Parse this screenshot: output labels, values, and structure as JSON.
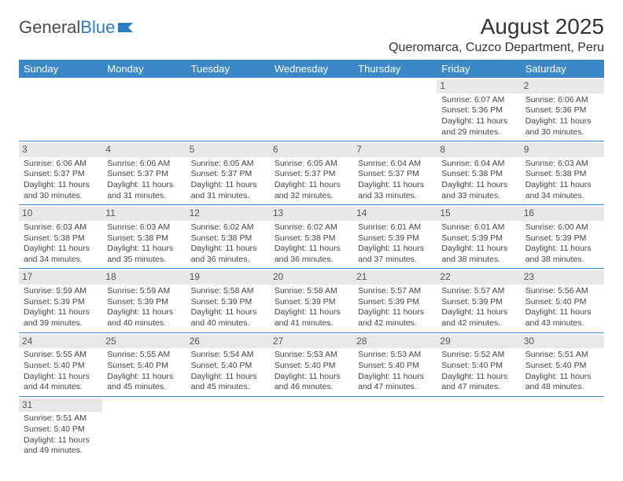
{
  "logo": {
    "text_a": "General",
    "text_b": "Blue",
    "color_a": "#4a4a4a",
    "color_b": "#2b7bbf"
  },
  "title": "August 2025",
  "location": "Queromarca, Cuzco Department, Peru",
  "header_bg": "#3b87c8",
  "daynum_bg": "#e8e8e8",
  "days_of_week": [
    "Sunday",
    "Monday",
    "Tuesday",
    "Wednesday",
    "Thursday",
    "Friday",
    "Saturday"
  ],
  "weeks": [
    [
      null,
      null,
      null,
      null,
      null,
      {
        "n": "1",
        "sunrise": "Sunrise: 6:07 AM",
        "sunset": "Sunset: 5:36 PM",
        "daylight": "Daylight: 11 hours and 29 minutes."
      },
      {
        "n": "2",
        "sunrise": "Sunrise: 6:06 AM",
        "sunset": "Sunset: 5:36 PM",
        "daylight": "Daylight: 11 hours and 30 minutes."
      }
    ],
    [
      {
        "n": "3",
        "sunrise": "Sunrise: 6:06 AM",
        "sunset": "Sunset: 5:37 PM",
        "daylight": "Daylight: 11 hours and 30 minutes."
      },
      {
        "n": "4",
        "sunrise": "Sunrise: 6:06 AM",
        "sunset": "Sunset: 5:37 PM",
        "daylight": "Daylight: 11 hours and 31 minutes."
      },
      {
        "n": "5",
        "sunrise": "Sunrise: 6:05 AM",
        "sunset": "Sunset: 5:37 PM",
        "daylight": "Daylight: 11 hours and 31 minutes."
      },
      {
        "n": "6",
        "sunrise": "Sunrise: 6:05 AM",
        "sunset": "Sunset: 5:37 PM",
        "daylight": "Daylight: 11 hours and 32 minutes."
      },
      {
        "n": "7",
        "sunrise": "Sunrise: 6:04 AM",
        "sunset": "Sunset: 5:37 PM",
        "daylight": "Daylight: 11 hours and 33 minutes."
      },
      {
        "n": "8",
        "sunrise": "Sunrise: 6:04 AM",
        "sunset": "Sunset: 5:38 PM",
        "daylight": "Daylight: 11 hours and 33 minutes."
      },
      {
        "n": "9",
        "sunrise": "Sunrise: 6:03 AM",
        "sunset": "Sunset: 5:38 PM",
        "daylight": "Daylight: 11 hours and 34 minutes."
      }
    ],
    [
      {
        "n": "10",
        "sunrise": "Sunrise: 6:03 AM",
        "sunset": "Sunset: 5:38 PM",
        "daylight": "Daylight: 11 hours and 34 minutes."
      },
      {
        "n": "11",
        "sunrise": "Sunrise: 6:03 AM",
        "sunset": "Sunset: 5:38 PM",
        "daylight": "Daylight: 11 hours and 35 minutes."
      },
      {
        "n": "12",
        "sunrise": "Sunrise: 6:02 AM",
        "sunset": "Sunset: 5:38 PM",
        "daylight": "Daylight: 11 hours and 36 minutes."
      },
      {
        "n": "13",
        "sunrise": "Sunrise: 6:02 AM",
        "sunset": "Sunset: 5:38 PM",
        "daylight": "Daylight: 11 hours and 36 minutes."
      },
      {
        "n": "14",
        "sunrise": "Sunrise: 6:01 AM",
        "sunset": "Sunset: 5:39 PM",
        "daylight": "Daylight: 11 hours and 37 minutes."
      },
      {
        "n": "15",
        "sunrise": "Sunrise: 6:01 AM",
        "sunset": "Sunset: 5:39 PM",
        "daylight": "Daylight: 11 hours and 38 minutes."
      },
      {
        "n": "16",
        "sunrise": "Sunrise: 6:00 AM",
        "sunset": "Sunset: 5:39 PM",
        "daylight": "Daylight: 11 hours and 38 minutes."
      }
    ],
    [
      {
        "n": "17",
        "sunrise": "Sunrise: 5:59 AM",
        "sunset": "Sunset: 5:39 PM",
        "daylight": "Daylight: 11 hours and 39 minutes."
      },
      {
        "n": "18",
        "sunrise": "Sunrise: 5:59 AM",
        "sunset": "Sunset: 5:39 PM",
        "daylight": "Daylight: 11 hours and 40 minutes."
      },
      {
        "n": "19",
        "sunrise": "Sunrise: 5:58 AM",
        "sunset": "Sunset: 5:39 PM",
        "daylight": "Daylight: 11 hours and 40 minutes."
      },
      {
        "n": "20",
        "sunrise": "Sunrise: 5:58 AM",
        "sunset": "Sunset: 5:39 PM",
        "daylight": "Daylight: 11 hours and 41 minutes."
      },
      {
        "n": "21",
        "sunrise": "Sunrise: 5:57 AM",
        "sunset": "Sunset: 5:39 PM",
        "daylight": "Daylight: 11 hours and 42 minutes."
      },
      {
        "n": "22",
        "sunrise": "Sunrise: 5:57 AM",
        "sunset": "Sunset: 5:39 PM",
        "daylight": "Daylight: 11 hours and 42 minutes."
      },
      {
        "n": "23",
        "sunrise": "Sunrise: 5:56 AM",
        "sunset": "Sunset: 5:40 PM",
        "daylight": "Daylight: 11 hours and 43 minutes."
      }
    ],
    [
      {
        "n": "24",
        "sunrise": "Sunrise: 5:55 AM",
        "sunset": "Sunset: 5:40 PM",
        "daylight": "Daylight: 11 hours and 44 minutes."
      },
      {
        "n": "25",
        "sunrise": "Sunrise: 5:55 AM",
        "sunset": "Sunset: 5:40 PM",
        "daylight": "Daylight: 11 hours and 45 minutes."
      },
      {
        "n": "26",
        "sunrise": "Sunrise: 5:54 AM",
        "sunset": "Sunset: 5:40 PM",
        "daylight": "Daylight: 11 hours and 45 minutes."
      },
      {
        "n": "27",
        "sunrise": "Sunrise: 5:53 AM",
        "sunset": "Sunset: 5:40 PM",
        "daylight": "Daylight: 11 hours and 46 minutes."
      },
      {
        "n": "28",
        "sunrise": "Sunrise: 5:53 AM",
        "sunset": "Sunset: 5:40 PM",
        "daylight": "Daylight: 11 hours and 47 minutes."
      },
      {
        "n": "29",
        "sunrise": "Sunrise: 5:52 AM",
        "sunset": "Sunset: 5:40 PM",
        "daylight": "Daylight: 11 hours and 47 minutes."
      },
      {
        "n": "30",
        "sunrise": "Sunrise: 5:51 AM",
        "sunset": "Sunset: 5:40 PM",
        "daylight": "Daylight: 11 hours and 48 minutes."
      }
    ],
    [
      {
        "n": "31",
        "sunrise": "Sunrise: 5:51 AM",
        "sunset": "Sunset: 5:40 PM",
        "daylight": "Daylight: 11 hours and 49 minutes."
      },
      null,
      null,
      null,
      null,
      null,
      null
    ]
  ]
}
